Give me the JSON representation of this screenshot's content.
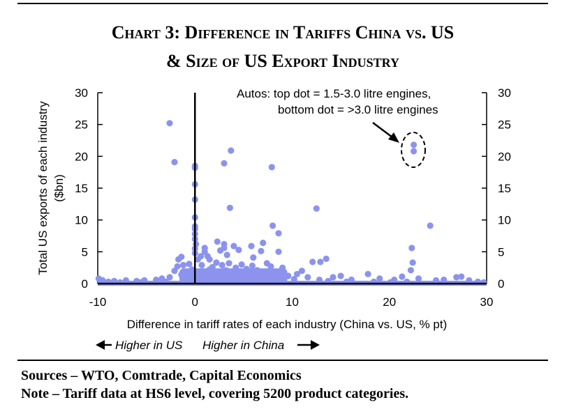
{
  "title_line1": "Chart 3: Difference in Tariffs China vs. US",
  "title_line2": "& Size of US Export Industry",
  "sources": "Sources – WTO, Comtrade, Capital Economics",
  "note": "Note – Tariff data at HS6 level, covering 5200 product categories.",
  "colors": {
    "points": "#8b93ee",
    "axis": "#000000"
  },
  "chart_data": {
    "type": "scatter",
    "xlabel": "Difference in tariff rates of each industry (China vs. US, % pt)",
    "ylabel": "Total US exports of each industry ($bn)",
    "xlim": [
      -10,
      30
    ],
    "ylim": [
      0,
      30
    ],
    "xticks": [
      -10,
      0,
      10,
      20,
      30
    ],
    "yticks": [
      0,
      5,
      10,
      15,
      20,
      25,
      30
    ],
    "secondary_y_axis": true,
    "grid": false,
    "annotation": {
      "line1": "Autos:  top dot = 1.5-3.0 litre engines,",
      "line2": "bottom dot = >3.0 litre engines",
      "target": [
        22.5,
        21.3
      ]
    },
    "direction_left": "Higher in US",
    "direction_right": "Higher in China",
    "points": [
      [
        -2.6,
        25.2
      ],
      [
        -2.1,
        19.1
      ],
      [
        0.0,
        18.5
      ],
      [
        0.0,
        18.2
      ],
      [
        0.0,
        15.6
      ],
      [
        0.0,
        13.2
      ],
      [
        0.0,
        10.4
      ],
      [
        0.0,
        9.0
      ],
      [
        0.0,
        8.6
      ],
      [
        0.0,
        7.8
      ],
      [
        0.0,
        7.0
      ],
      [
        0.1,
        6.2
      ],
      [
        0.0,
        5.5
      ],
      [
        0.0,
        4.8
      ],
      [
        3.0,
        18.9
      ],
      [
        3.7,
        20.9
      ],
      [
        3.6,
        11.9
      ],
      [
        7.9,
        18.3
      ],
      [
        12.5,
        11.8
      ],
      [
        22.5,
        21.8
      ],
      [
        22.5,
        20.8
      ],
      [
        24.2,
        9.1
      ],
      [
        22.3,
        5.6
      ],
      [
        22.4,
        3.3
      ],
      [
        22.2,
        2.1
      ],
      [
        8.0,
        9.1
      ],
      [
        8.6,
        7.9
      ],
      [
        1.0,
        5.6
      ],
      [
        1.0,
        5.0
      ],
      [
        1.3,
        4.3
      ],
      [
        1.5,
        3.8
      ],
      [
        2.3,
        6.6
      ],
      [
        2.6,
        5.2
      ],
      [
        3.0,
        5.6
      ],
      [
        3.3,
        4.5
      ],
      [
        3.0,
        6.2
      ],
      [
        4.0,
        5.9
      ],
      [
        4.5,
        5.3
      ],
      [
        5.8,
        5.9
      ],
      [
        6.8,
        5.1
      ],
      [
        7.0,
        6.4
      ],
      [
        6.0,
        4.1
      ],
      [
        8.6,
        5.0
      ],
      [
        7.4,
        3.2
      ],
      [
        7.8,
        2.7
      ],
      [
        9.0,
        2.5
      ],
      [
        12.1,
        3.4
      ],
      [
        12.9,
        3.4
      ],
      [
        13.5,
        3.9
      ],
      [
        -1.7,
        3.8
      ],
      [
        -1.4,
        4.2
      ],
      [
        -1.8,
        2.7
      ],
      [
        -2.1,
        2.0
      ],
      [
        -1.2,
        2.9
      ],
      [
        -0.6,
        3.1
      ],
      [
        -0.3,
        2.2
      ],
      [
        -1.4,
        1.4
      ],
      [
        -2.6,
        1.0
      ],
      [
        -3.4,
        0.8
      ],
      [
        -4.0,
        0.6
      ],
      [
        -5.2,
        0.5
      ],
      [
        -6.0,
        0.4
      ],
      [
        -7.1,
        0.5
      ],
      [
        -8.3,
        0.4
      ],
      [
        -9.5,
        0.5
      ],
      [
        -9.9,
        0.8
      ],
      [
        1.8,
        2.6
      ],
      [
        2.2,
        3.3
      ],
      [
        2.8,
        2.9
      ],
      [
        3.5,
        3.2
      ],
      [
        4.2,
        2.5
      ],
      [
        4.8,
        3.0
      ],
      [
        5.3,
        2.3
      ],
      [
        5.9,
        2.8
      ],
      [
        6.4,
        2.1
      ],
      [
        7.0,
        1.6
      ],
      [
        9.6,
        1.2
      ],
      [
        10.5,
        1.5
      ],
      [
        11.0,
        2.0
      ],
      [
        11.6,
        1.0
      ],
      [
        14.2,
        1.0
      ],
      [
        15.0,
        1.2
      ],
      [
        16.1,
        0.6
      ],
      [
        17.8,
        1.5
      ],
      [
        19.0,
        0.8
      ],
      [
        20.5,
        0.6
      ],
      [
        21.3,
        1.1
      ],
      [
        23.0,
        0.8
      ],
      [
        24.8,
        0.5
      ],
      [
        25.6,
        0.6
      ],
      [
        26.9,
        1.0
      ],
      [
        27.4,
        1.1
      ],
      [
        28.2,
        0.5
      ],
      [
        29.1,
        0.3
      ],
      [
        29.7,
        0.2
      ],
      [
        0.5,
        1.8
      ],
      [
        1.2,
        1.3
      ],
      [
        2.0,
        1.0
      ],
      [
        3.9,
        1.5
      ],
      [
        5.1,
        1.3
      ],
      [
        6.2,
        0.9
      ],
      [
        8.4,
        0.8
      ],
      [
        10.2,
        0.7
      ],
      [
        12.8,
        0.6
      ],
      [
        13.7,
        0.4
      ],
      [
        15.6,
        0.3
      ],
      [
        18.4,
        0.3
      ],
      [
        20.1,
        0.2
      ],
      [
        21.8,
        0.3
      ],
      [
        -3.0,
        0.3
      ],
      [
        -5.6,
        0.2
      ],
      [
        -7.7,
        0.2
      ],
      [
        -8.9,
        0.3
      ],
      [
        4.6,
        1.9
      ],
      [
        2.5,
        1.6
      ],
      [
        3.2,
        2.1
      ],
      [
        1.5,
        2.2
      ],
      [
        0.7,
        2.9
      ],
      [
        0.3,
        3.8
      ],
      [
        0.6,
        4.3
      ]
    ]
  }
}
